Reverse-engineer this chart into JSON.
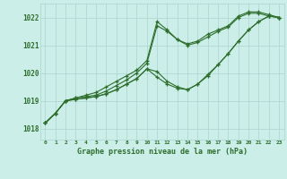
{
  "title": "Graphe pression niveau de la mer (hPa)",
  "bg_color": "#cceee8",
  "grid_color": "#aad4ce",
  "line_color": "#2d6e2d",
  "xlim": [
    -0.5,
    23.5
  ],
  "ylim": [
    1017.6,
    1022.5
  ],
  "xticks": [
    0,
    1,
    2,
    3,
    4,
    5,
    6,
    7,
    8,
    9,
    10,
    11,
    12,
    13,
    14,
    15,
    16,
    17,
    18,
    19,
    20,
    21,
    22,
    23
  ],
  "yticks": [
    1018,
    1019,
    1020,
    1021,
    1022
  ],
  "series": [
    [
      1018.2,
      1018.55,
      1019.0,
      1019.1,
      1019.2,
      1019.3,
      1019.5,
      1019.7,
      1019.9,
      1020.1,
      1020.45,
      1021.85,
      1021.55,
      1021.2,
      1021.05,
      1021.15,
      1021.4,
      1021.55,
      1021.7,
      1022.05,
      1022.2,
      1022.2,
      1022.1,
      1022.0
    ],
    [
      1018.2,
      1018.55,
      1019.0,
      1019.1,
      1019.15,
      1019.2,
      1019.35,
      1019.55,
      1019.75,
      1020.0,
      1020.35,
      1021.7,
      1021.5,
      1021.2,
      1021.0,
      1021.1,
      1021.3,
      1021.5,
      1021.65,
      1022.0,
      1022.15,
      1022.15,
      1022.05,
      1022.0
    ],
    [
      1018.2,
      1018.55,
      1019.0,
      1019.05,
      1019.1,
      1019.15,
      1019.25,
      1019.4,
      1019.6,
      1019.8,
      1020.15,
      1019.85,
      1019.6,
      1019.45,
      1019.4,
      1019.6,
      1019.9,
      1020.3,
      1020.7,
      1021.15,
      1021.55,
      1021.85,
      1022.05,
      1022.0
    ],
    [
      1018.2,
      1018.55,
      1019.0,
      1019.05,
      1019.1,
      1019.15,
      1019.25,
      1019.4,
      1019.6,
      1019.8,
      1020.15,
      1020.05,
      1019.7,
      1019.5,
      1019.4,
      1019.6,
      1019.95,
      1020.3,
      1020.7,
      1021.15,
      1021.55,
      1021.85,
      1022.05,
      1022.0
    ]
  ]
}
